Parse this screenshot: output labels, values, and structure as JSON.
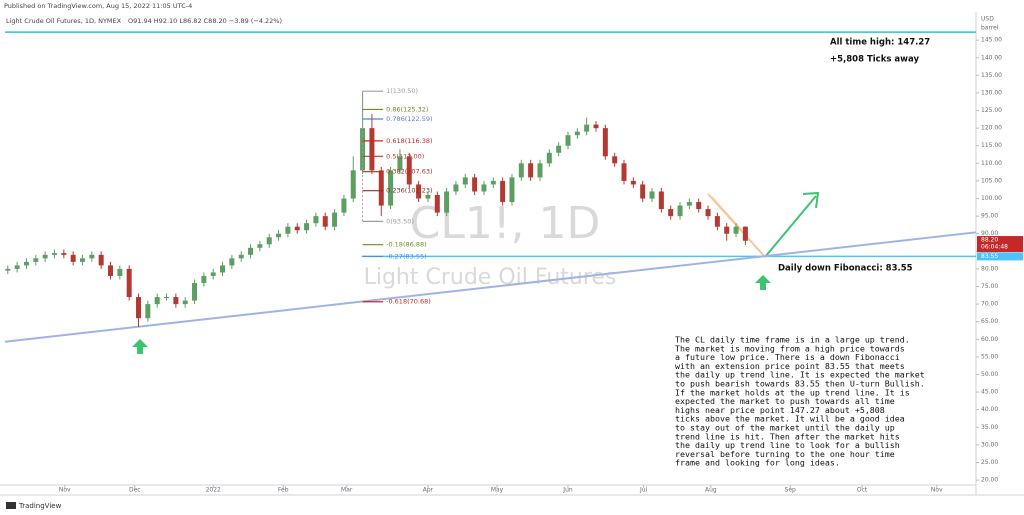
{
  "chart_data": {
    "type": "candlestick",
    "publisher": "Published on TradingView.com, Aug 15, 2022 11:05 UTC-4",
    "title": "Light Crude Oil Futures, 1D, NYMEX",
    "ohlc_text": "O91.94 H92.10 L86.82 C88.20 −3.89 (−4.22%)",
    "watermark": "CL1!, 1D",
    "watermark_sub": "Light Crude Oil Futures",
    "currency": "USD",
    "unit": "barrel",
    "brand": "TradingView",
    "up_color": "#5d9e63",
    "down_color": "#b23a33",
    "open": [
      79.5,
      80,
      81,
      82,
      83,
      84,
      84.5,
      84,
      82,
      83,
      84,
      81,
      78,
      80,
      72,
      66,
      70,
      72,
      72,
      70,
      71,
      76,
      78,
      79,
      81,
      83,
      84,
      86,
      87,
      89,
      90,
      92,
      91,
      93,
      95,
      92,
      96,
      100,
      108,
      120,
      108,
      98,
      108,
      112,
      104,
      100,
      101,
      96,
      102,
      104,
      106,
      102,
      104,
      105,
      99,
      106,
      110,
      106,
      110,
      113,
      115,
      118,
      119,
      121,
      120,
      112,
      110,
      105,
      104,
      100,
      102,
      97,
      95,
      98,
      99,
      97,
      95,
      92,
      90,
      92
    ],
    "high": [
      81,
      82,
      83,
      84,
      85,
      85.5,
      85.5,
      85,
      84,
      85,
      85,
      82,
      81,
      81,
      73,
      71,
      73,
      73,
      73,
      72,
      77,
      79,
      80,
      82,
      84,
      85,
      87,
      88,
      90,
      91,
      93,
      93,
      94,
      96,
      96,
      97,
      101,
      112,
      130.5,
      124,
      109,
      109,
      114,
      113,
      105,
      102,
      102,
      103,
      105,
      107,
      107,
      105,
      106,
      106,
      107,
      111,
      111,
      111,
      114,
      116,
      119,
      120,
      123,
      122,
      121,
      113,
      111,
      106,
      105,
      103,
      103,
      98,
      99,
      100,
      100,
      98,
      96,
      93,
      93,
      92.1
    ],
    "low": [
      78.5,
      79,
      80,
      81,
      82,
      83,
      83,
      81,
      81,
      82,
      80,
      77,
      77,
      71,
      63.5,
      65,
      69,
      71,
      69,
      69,
      70,
      75,
      77,
      78,
      80,
      82,
      83,
      85,
      86,
      88,
      89,
      90,
      90,
      92,
      91,
      91,
      95,
      99,
      107,
      107,
      95,
      97,
      107,
      103,
      99,
      99,
      95,
      95,
      101,
      103,
      101,
      101,
      103,
      98,
      98,
      105,
      105,
      105,
      109,
      112,
      114,
      117,
      118,
      119,
      111,
      109,
      104,
      103,
      99,
      99,
      96,
      94,
      94,
      97,
      96,
      94,
      91,
      88,
      89,
      86.8
    ],
    "close": [
      80,
      81,
      82,
      83,
      84,
      84.5,
      84,
      82,
      83,
      84,
      81,
      78,
      80,
      72,
      66,
      70,
      72,
      72,
      70,
      71,
      76,
      78,
      79,
      81,
      83,
      84,
      86,
      87,
      89,
      90,
      92,
      91,
      93,
      95,
      92,
      96,
      100,
      108,
      120,
      108,
      98,
      108,
      112,
      104,
      100,
      101,
      96,
      102,
      104,
      106,
      102,
      104,
      105,
      99,
      106,
      110,
      106,
      110,
      113,
      115,
      118,
      119,
      121,
      120,
      112,
      110,
      105,
      104,
      100,
      102,
      97,
      95,
      98,
      99,
      97,
      95,
      92,
      90,
      92,
      88
    ],
    "xlim": [
      -0.3,
      103.7
    ],
    "xticks": [
      {
        "value": 6.1,
        "label": "Nov"
      },
      {
        "value": 13.6,
        "label": "Dec"
      },
      {
        "value": 22.0,
        "label": "2022"
      },
      {
        "value": 29.5,
        "label": "Feb"
      },
      {
        "value": 36.3,
        "label": "Mar"
      },
      {
        "value": 45.0,
        "label": "Apr"
      },
      {
        "value": 52.4,
        "label": "May"
      },
      {
        "value": 60.0,
        "label": "Jun"
      },
      {
        "value": 68.1,
        "label": "Jul"
      },
      {
        "value": 75.3,
        "label": "Aug"
      },
      {
        "value": 83.8,
        "label": "Sep"
      },
      {
        "value": 91.5,
        "label": "Oct"
      },
      {
        "value": 99.5,
        "label": "Nov"
      }
    ],
    "ylim": [
      18.6,
      153
    ],
    "yticks": [
      {
        "value": 20,
        "label": "20.00"
      },
      {
        "value": 25,
        "label": "25.00"
      },
      {
        "value": 30,
        "label": "30.00"
      },
      {
        "value": 35,
        "label": "35.00"
      },
      {
        "value": 40,
        "label": "40.00"
      },
      {
        "value": 45,
        "label": "45.00"
      },
      {
        "value": 50,
        "label": "50.00"
      },
      {
        "value": 55,
        "label": "55.00"
      },
      {
        "value": 60,
        "label": "60.00"
      },
      {
        "value": 65,
        "label": "65.00"
      },
      {
        "value": 70,
        "label": "70.00"
      },
      {
        "value": 75,
        "label": "75.00"
      },
      {
        "value": 80,
        "label": "80.00"
      },
      {
        "value": 85,
        "label": "85.00"
      },
      {
        "value": 90,
        "label": "90.00"
      },
      {
        "value": 95,
        "label": "95.00"
      },
      {
        "value": 100,
        "label": "100.00"
      },
      {
        "value": 105,
        "label": "105.00"
      },
      {
        "value": 110,
        "label": "110.00"
      },
      {
        "value": 115,
        "label": "115.00"
      },
      {
        "value": 120,
        "label": "120.00"
      },
      {
        "value": 125,
        "label": "125.00"
      },
      {
        "value": 130,
        "label": "130.00"
      },
      {
        "value": 135,
        "label": "135.00"
      },
      {
        "value": 140,
        "label": "140.00"
      },
      {
        "value": 145,
        "label": "145.00"
      }
    ],
    "grid": false,
    "hlines": [
      {
        "value": 147.27,
        "start": -0.3,
        "color": "#26c6da"
      },
      {
        "value": 83.55,
        "start": 37.9,
        "color": "#4fc3f7"
      }
    ],
    "trendline": {
      "x": [
        -0.3,
        103.7
      ],
      "y": [
        59.3,
        90.4
      ],
      "color": "#9fb4e6"
    },
    "fib_range": [
      38.0,
      40.2
    ],
    "fib_levels": [
      {
        "value": 130.5,
        "label": "1(130.50)",
        "color": "#9e9e9e"
      },
      {
        "value": 125.32,
        "label": "0.86(125.32)",
        "color": "#6b8e23"
      },
      {
        "value": 122.59,
        "label": "0.786(122.59)",
        "color": "#5b7fd1"
      },
      {
        "value": 116.38,
        "label": "0.618(116.38)",
        "color": "#c62828"
      },
      {
        "value": 112.0,
        "label": "0.5(112.00)",
        "color": "#c0392b"
      },
      {
        "value": 107.63,
        "label": "0.382(107.63)",
        "color": "#a93226"
      },
      {
        "value": 102.23,
        "label": "0.236(102.23)",
        "color": "#922b21"
      },
      {
        "value": 93.5,
        "label": "0(93.50)",
        "color": "#9e9e9e"
      },
      {
        "value": 86.88,
        "label": "-0.18(86.88)",
        "color": "#6b8e23"
      },
      {
        "value": 83.55,
        "label": "-0.27(83.55)",
        "color": "#4a90d9"
      },
      {
        "value": 70.68,
        "label": "-0.618(70.68)",
        "color": "#c62828"
      }
    ],
    "price_labels": [
      {
        "value": 88.2,
        "label": "88.20",
        "sub": "06:04:48",
        "color": "#c62828"
      },
      {
        "value": 83.55,
        "label": "83.55",
        "color": "#4fc3f7"
      }
    ],
    "annotations": [
      "All time high: 147.27",
      "+5,808 Ticks away",
      "Daily down Fibonacci: 83.55"
    ],
    "note": [
      "The CL daily time frame is in a large up trend.",
      "The market is moving from a high price towards",
      "a future low price. There is a down Fibonacci",
      "with an extension price point 83.55 that meets",
      "the daily up trend line. It is expected the market",
      "to push bearish towards 83.55 then U-turn Bullish.",
      "If the market holds at the up trend line. It is",
      "expected the market to push towards all time",
      "highs near price point 147.27 about +5,808",
      "ticks above the market. It will be a good idea",
      "to stay out of the market until the daily up",
      "trend line is hit. Then after the market hits",
      "the daily up trend line to look for a bullish",
      "reversal before turning to the one hour time",
      "frame and looking for long ideas."
    ]
  }
}
